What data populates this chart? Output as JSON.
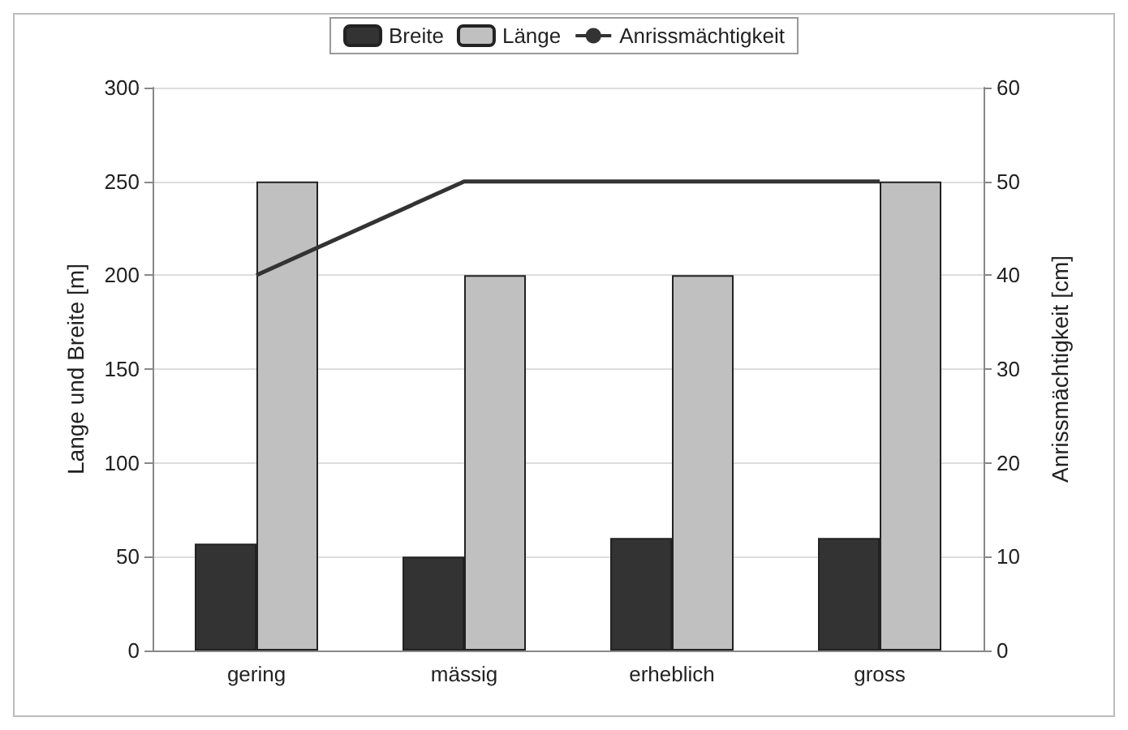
{
  "chart_data": {
    "type": "bar",
    "categories": [
      "gering",
      "mässig",
      "erheblich",
      "gross"
    ],
    "series": [
      {
        "name": "Breite",
        "color": "#333333",
        "values": [
          57,
          50,
          60,
          60
        ]
      },
      {
        "name": "Länge",
        "color": "#c0c0c0",
        "values": [
          250,
          200,
          200,
          250
        ]
      },
      {
        "name": "Anrissmächtigkeit",
        "type": "line",
        "axis": "y2",
        "color": "#333333",
        "values": [
          40,
          50,
          50,
          50
        ]
      }
    ],
    "ylabel": "Lange und Breite [m]",
    "y2label": "Anrissmächtigkeit [cm]",
    "ylim": [
      0,
      300
    ],
    "yticks": [
      0,
      50,
      100,
      150,
      200,
      250,
      300
    ],
    "y2lim": [
      0,
      60
    ],
    "y2ticks": [
      0,
      10,
      20,
      30,
      40,
      50,
      60
    ],
    "grid": "y",
    "legend": "top",
    "marker": "none"
  }
}
